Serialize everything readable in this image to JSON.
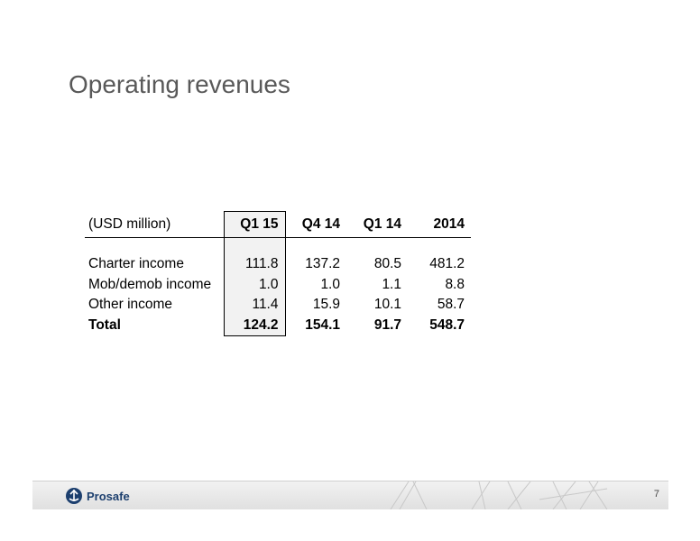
{
  "slide": {
    "title": "Operating revenues",
    "page_number": "7"
  },
  "table": {
    "unit_label": "(USD million)",
    "columns": [
      "Q1 15",
      "Q4 14",
      "Q1 14",
      "2014"
    ],
    "highlighted_column": "Q1 15",
    "rows": [
      {
        "label": "Charter income",
        "values": [
          "111.8",
          "137.2",
          "80.5",
          "481.2"
        ]
      },
      {
        "label": "Mob/demob income",
        "values": [
          "1.0",
          "1.0",
          "1.1",
          "8.8"
        ]
      },
      {
        "label": "Other income",
        "values": [
          "11.4",
          "15.9",
          "10.1",
          "58.7"
        ]
      },
      {
        "label": "Total",
        "values": [
          "124.2",
          "154.1",
          "91.7",
          "548.7"
        ]
      }
    ]
  },
  "footer": {
    "logo_text": "Prosafe",
    "logo_icon": "prosafe-logo-icon"
  }
}
